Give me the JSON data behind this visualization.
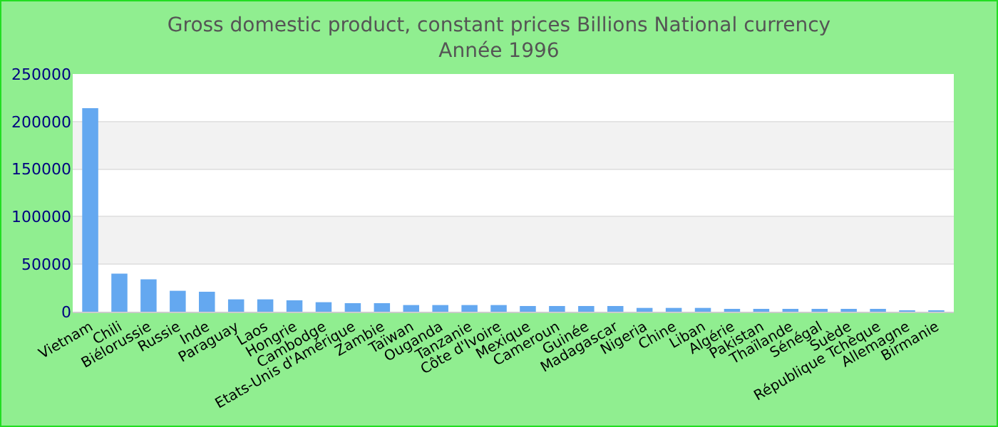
{
  "chart_data": {
    "type": "bar",
    "title": "Gross domestic product, constant prices Billions National currency",
    "subtitle": "Année 1996",
    "categories": [
      "Vietnam",
      "Chili",
      "Biélorussie",
      "Russie",
      "Inde",
      "Paraguay",
      "Laos",
      "Hongrie",
      "Cambodge",
      "Etats-Unis d'Amérique",
      "Zambie",
      "Taïwan",
      "Ouganda",
      "Tanzanie",
      "Côte d'Ivoire",
      "Mexique",
      "Cameroun",
      "Guinée",
      "Madagascar",
      "Nigeria",
      "Chine",
      "Liban",
      "Algérie",
      "Pakistan",
      "Thaïlande",
      "Sénégal",
      "Suède",
      "République Tchèque",
      "Allemagne",
      "Birmanie"
    ],
    "values": [
      214000,
      40000,
      34000,
      22000,
      21000,
      13000,
      13000,
      12000,
      10000,
      9000,
      9000,
      7000,
      7000,
      7000,
      7000,
      6000,
      6000,
      6000,
      6000,
      4000,
      4000,
      4000,
      3000,
      3000,
      3000,
      3000,
      3000,
      3000,
      1000,
      1000
    ],
    "color": "#64a8f0",
    "ylim": [
      0,
      250000
    ],
    "yticks": [
      0,
      50000,
      100000,
      150000,
      200000,
      250000
    ],
    "grid": "y"
  }
}
